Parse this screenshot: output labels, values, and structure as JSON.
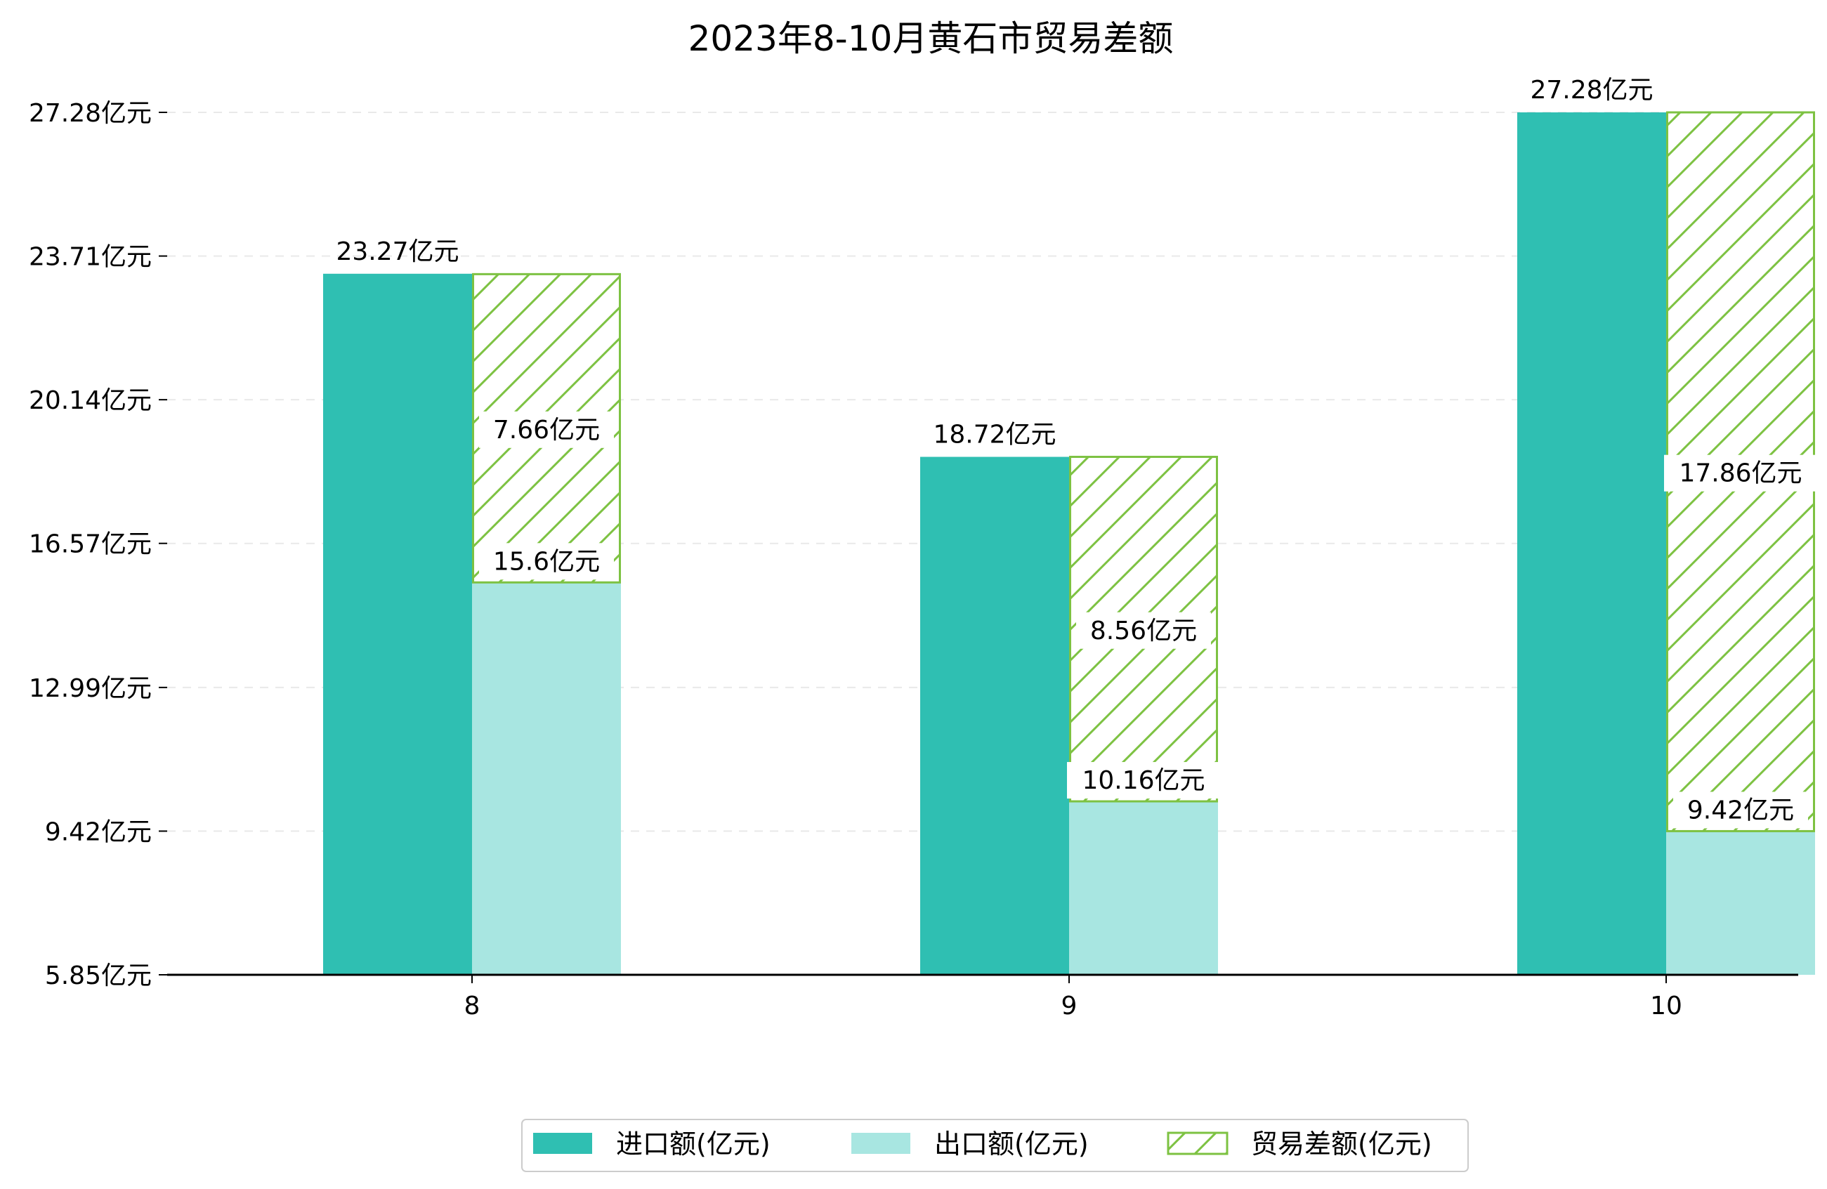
{
  "chart_data": {
    "type": "bar",
    "title": "2023年8-10月黄石市贸易差额",
    "categories": [
      "8",
      "9",
      "10"
    ],
    "ylim": [
      5.85,
      27.28
    ],
    "yticks": [
      "5.85亿元",
      "9.42亿元",
      "12.99亿元",
      "16.57亿元",
      "20.14亿元",
      "23.71亿元",
      "27.28亿元"
    ],
    "ytick_values": [
      5.85,
      9.42,
      12.99,
      16.57,
      20.14,
      23.71,
      27.28
    ],
    "grid": "horizontal-dashed",
    "legend_position": "bottom-center",
    "series": [
      {
        "name": "进口额(亿元)",
        "values": [
          23.27,
          18.72,
          27.28
        ],
        "labels": [
          "23.27亿元",
          "18.72亿元",
          "27.28亿元"
        ],
        "color": "#2FBFB2"
      },
      {
        "name": "出口额(亿元)",
        "values": [
          15.6,
          10.16,
          9.42
        ],
        "labels": [
          "15.6亿元",
          "10.16亿元",
          "9.42亿元"
        ],
        "color": "#A8E6E1"
      },
      {
        "name": "贸易差额(亿元)",
        "values": [
          7.66,
          8.56,
          17.86
        ],
        "labels": [
          "7.66亿元",
          "8.56亿元",
          "17.86亿元"
        ],
        "color": "#7DC242",
        "stacked_on": "出口额(亿元)",
        "hatch": "diagonal"
      }
    ]
  }
}
